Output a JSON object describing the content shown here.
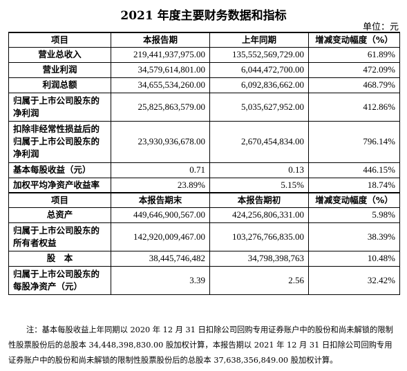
{
  "title": "2021 年度主要财务数据和指标",
  "unit": "单位：元",
  "table1": {
    "headers": [
      "项目",
      "本报告期",
      "上年同期",
      "增减变动幅度（%）"
    ],
    "rows": [
      {
        "label": "营业总收入",
        "current": "219,441,937,975.00",
        "previous": "135,552,569,729.00",
        "change": "61.89%"
      },
      {
        "label": "营业利润",
        "current": "34,579,614,801.00",
        "previous": "6,044,472,700.00",
        "change": "472.09%"
      },
      {
        "label": "利润总额",
        "current": "34,655,534,260.00",
        "previous": "6,092,836,662.00",
        "change": "468.79%"
      },
      {
        "label": "归属于上市公司股东的净利润",
        "current": "25,825,863,579.00",
        "previous": "5,035,627,952.00",
        "change": "412.86%"
      },
      {
        "label": "扣除非经常性损益后的归属于上市公司股东的净利润",
        "current": "23,930,936,678.00",
        "previous": "2,670,454,834.00",
        "change": "796.14%"
      },
      {
        "label": "基本每股收益（元）",
        "current": "0.71",
        "previous": "0.13",
        "change": "446.15%"
      },
      {
        "label": "加权平均净资产收益率",
        "current": "23.89%",
        "previous": "5.15%",
        "change": "18.74%"
      }
    ]
  },
  "table2": {
    "headers": [
      "项目",
      "本报告期末",
      "本报告期初",
      "增减变动幅度（%）"
    ],
    "rows": [
      {
        "label": "总资产",
        "current": "449,646,900,567.00",
        "previous": "424,256,806,331.00",
        "change": "5.98%"
      },
      {
        "label": "归属于上市公司股东的所有者权益",
        "current": "142,920,009,467.00",
        "previous": "103,276,766,835.00",
        "change": "38.39%"
      },
      {
        "label": "股　本",
        "current": "38,445,746,482",
        "previous": "34,798,398,763",
        "change": "10.48%"
      },
      {
        "label": "归属于上市公司股东的每股净资产（元）",
        "current": "3.39",
        "previous": "2.56",
        "change": "32.42%"
      }
    ]
  },
  "note": "注：基本每股收益上年同期以 2020 年 12 月 31 日扣除公司回购专用证券账户中的股份和尚未解锁的限制性股票股份后的总股本 34,448,398,830.00 股加权计算，本报告期以 2021 年 12 月 31 日扣除公司回购专用证券账户中的股份和尚未解锁的限制性股票股份后的总股本 37,638,356,849.00 股加权计算。"
}
